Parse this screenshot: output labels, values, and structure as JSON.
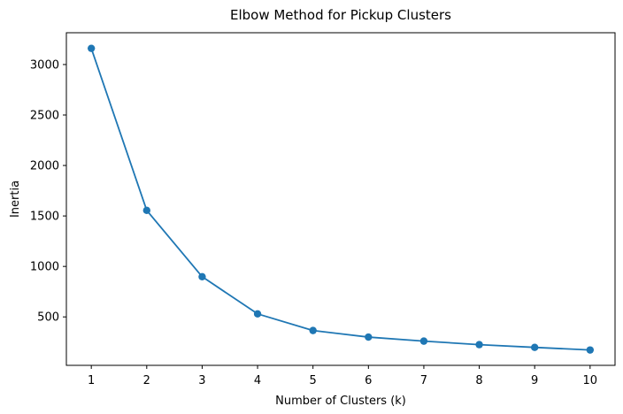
{
  "chart_data": {
    "type": "line",
    "title": "Elbow Method for Pickup Clusters",
    "xlabel": "Number of Clusters (k)",
    "ylabel": "Inertia",
    "x": [
      1,
      2,
      3,
      4,
      5,
      6,
      7,
      8,
      9,
      10
    ],
    "series": [
      {
        "values": [
          3160,
          1555,
          898,
          530,
          365,
          300,
          260,
          225,
          198,
          172
        ],
        "color": "#1f77b4",
        "marker": "circle"
      }
    ],
    "xticks": [
      1,
      2,
      3,
      4,
      5,
      6,
      7,
      8,
      9,
      10
    ],
    "yticks": [
      500,
      1000,
      1500,
      2000,
      2500,
      3000
    ],
    "xlim": [
      0.55,
      10.45
    ],
    "ylim": [
      20,
      3315
    ],
    "grid": false,
    "legend": "none"
  }
}
